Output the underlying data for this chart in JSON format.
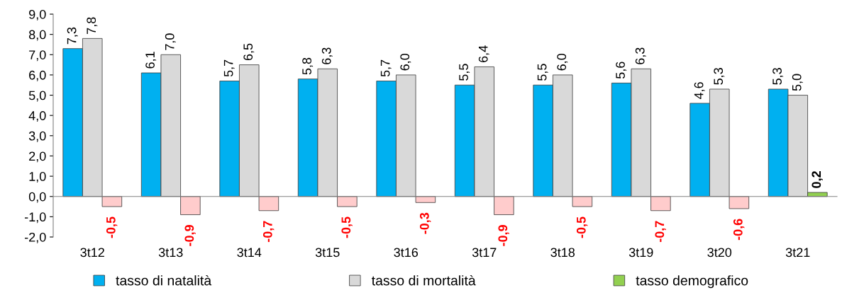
{
  "chart_data": {
    "type": "bar",
    "categories": [
      "3t12",
      "3t13",
      "3t14",
      "3t15",
      "3t16",
      "3t17",
      "3t18",
      "3t19",
      "3t20",
      "3t21"
    ],
    "series": [
      {
        "name": "tasso di natalità",
        "color": "#00b0f0",
        "values": [
          7.3,
          6.1,
          5.7,
          5.8,
          5.7,
          5.5,
          5.5,
          5.6,
          4.6,
          5.3
        ],
        "value_labels": [
          "7,3",
          "6,1",
          "5,7",
          "5,8",
          "5,7",
          "5,5",
          "5,5",
          "5,6",
          "4,6",
          "5,3"
        ]
      },
      {
        "name": "tasso di mortalità",
        "color": "#d9d9d9",
        "values": [
          7.8,
          7.0,
          6.5,
          6.3,
          6.0,
          6.4,
          6.0,
          6.3,
          5.3,
          5.0
        ],
        "value_labels": [
          "7,8",
          "7,0",
          "6,5",
          "6,3",
          "6,0",
          "6,4",
          "6,0",
          "6,3",
          "5,3",
          "5,0"
        ]
      },
      {
        "name": "tasso demografico",
        "color": "#92d050",
        "colors": [
          "#ffcccc",
          "#ffcccc",
          "#ffcccc",
          "#ffcccc",
          "#ffcccc",
          "#ffcccc",
          "#ffcccc",
          "#ffcccc",
          "#ffcccc",
          "#92d050"
        ],
        "values": [
          -0.5,
          -0.9,
          -0.7,
          -0.5,
          -0.3,
          -0.9,
          -0.5,
          -0.7,
          -0.6,
          0.2
        ],
        "value_labels": [
          "-0,5",
          "-0,9",
          "-0,7",
          "-0,5",
          "-0,3",
          "-0,9",
          "-0,5",
          "-0,7",
          "-0,6",
          "0,2"
        ]
      }
    ],
    "ylim": [
      -2.0,
      9.0
    ],
    "yticks": [
      {
        "value": -2.0,
        "label": "-2,0"
      },
      {
        "value": -1.0,
        "label": "-1,0"
      },
      {
        "value": 0.0,
        "label": "0,0"
      },
      {
        "value": 1.0,
        "label": "1,0"
      },
      {
        "value": 2.0,
        "label": "2,0"
      },
      {
        "value": 3.0,
        "label": "3,0"
      },
      {
        "value": 4.0,
        "label": "4,0"
      },
      {
        "value": 5.0,
        "label": "5,0"
      },
      {
        "value": 6.0,
        "label": "6,0"
      },
      {
        "value": 7.0,
        "label": "7,0"
      },
      {
        "value": 8.0,
        "label": "8,0"
      },
      {
        "value": 9.0,
        "label": "9,0"
      }
    ],
    "legend": "bottom"
  }
}
